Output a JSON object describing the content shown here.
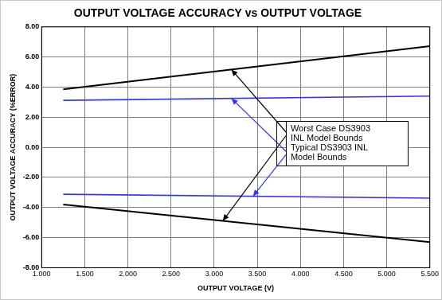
{
  "chart_data": {
    "type": "line",
    "title": "OUTPUT VOLTAGE ACCURACY vs OUTPUT VOLTAGE",
    "x_label": "OUTPUT VOLTAGE (V)",
    "y_label": "OUTPUT VOLTAGE ACCURACY (%ERROR)",
    "x": [
      1.25,
      5.5
    ],
    "series": [
      {
        "name": "Worst Case DS3903 INL Model Bounds",
        "color": "#000000",
        "values": [
          3.85,
          6.72
        ],
        "marker": "none",
        "line_style": "solid"
      },
      {
        "name": "Worst Case DS3903 INL Model Bounds",
        "color": "#000000",
        "values": [
          -3.8,
          -6.3
        ],
        "marker": "none",
        "line_style": "solid"
      },
      {
        "name": "Typical DS3903 INL Model Bounds",
        "color": "#3333ff",
        "values": [
          3.12,
          3.4
        ],
        "marker": "none",
        "line_style": "solid"
      },
      {
        "name": "Typical DS3903 INL Model Bounds",
        "color": "#3333ff",
        "values": [
          -3.12,
          -3.38
        ],
        "marker": "none",
        "line_style": "solid"
      }
    ],
    "xlim": [
      1,
      5.5
    ],
    "xticks": [
      {
        "value": 1,
        "label": "1.000"
      },
      {
        "value": 1.5,
        "label": "1.500"
      },
      {
        "value": 2,
        "label": "2.000"
      },
      {
        "value": 2.5,
        "label": "2.500"
      },
      {
        "value": 3,
        "label": "3.000"
      },
      {
        "value": 3.5,
        "label": "3.500"
      },
      {
        "value": 4,
        "label": "4.000"
      },
      {
        "value": 4.5,
        "label": "4.500"
      },
      {
        "value": 5,
        "label": "5.000"
      },
      {
        "value": 5.5,
        "label": "5.500"
      }
    ],
    "ylim": [
      -8,
      8
    ],
    "yticks": [
      {
        "value": -8,
        "label": "-8.00"
      },
      {
        "value": -6,
        "label": "-6.00"
      },
      {
        "value": -4,
        "label": "-4.00"
      },
      {
        "value": -2,
        "label": "-2.00"
      },
      {
        "value": 0,
        "label": "0.00"
      },
      {
        "value": 2,
        "label": "2.00"
      },
      {
        "value": 4,
        "label": "4.00"
      },
      {
        "value": 6,
        "label": "6.00"
      },
      {
        "value": 8,
        "label": "8.00"
      }
    ],
    "grid": true
  }
}
